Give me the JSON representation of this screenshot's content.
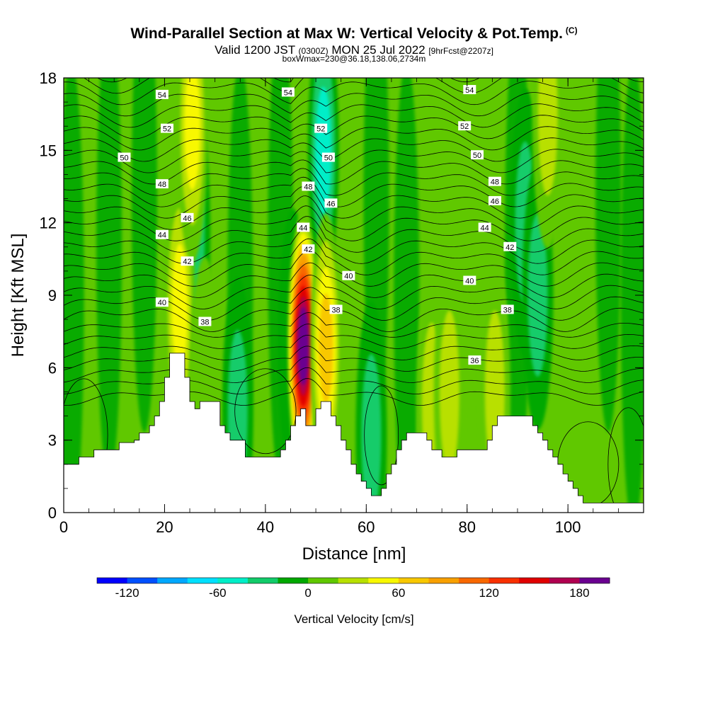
{
  "title": {
    "main": "Wind-Parallel Section at Max W: Vertical Velocity & Pot.Temp.",
    "copyright": "(C)",
    "valid_prefix": "Valid 1200 JST",
    "utc": "(0300Z)",
    "date": "MON 25 Jul 2022",
    "forecast": "[9hrFcst@2207z]",
    "box": "boxWmax=230@36.18,138.06,2734m"
  },
  "chart_data": {
    "type": "heatmap",
    "xlabel": "Distance [nm]",
    "ylabel": "Height [Kft MSL]",
    "xlim": [
      0,
      115
    ],
    "ylim": [
      0,
      18
    ],
    "x_ticks": [
      0,
      20,
      40,
      60,
      80,
      100
    ],
    "y_ticks": [
      0,
      3,
      6,
      9,
      12,
      15,
      18
    ],
    "terrain": {
      "x": [
        0,
        3,
        6,
        7,
        11,
        14,
        15,
        17,
        18,
        19,
        20,
        21,
        23,
        24,
        25,
        26,
        27,
        30,
        31,
        32,
        33,
        36,
        38,
        40,
        42,
        43,
        44,
        45,
        46,
        47,
        48,
        49,
        50,
        51,
        52,
        53,
        54,
        55,
        56,
        57,
        58,
        59,
        60,
        61,
        62,
        63,
        64,
        65,
        66,
        67,
        68,
        69,
        70,
        72,
        73,
        74,
        75,
        76,
        77,
        78,
        79,
        80,
        81,
        82,
        83,
        84,
        85,
        86,
        87,
        88,
        89,
        90,
        92,
        93,
        94,
        95,
        96,
        97,
        98,
        99,
        100,
        101,
        102,
        103,
        105,
        108,
        110,
        112,
        115
      ],
      "height": [
        2.0,
        2.3,
        2.6,
        2.6,
        2.9,
        3.0,
        3.3,
        3.6,
        4.0,
        4.6,
        5.6,
        6.6,
        6.6,
        5.6,
        4.6,
        4.3,
        4.6,
        4.6,
        3.6,
        3.3,
        3.0,
        2.3,
        2.3,
        2.3,
        2.3,
        2.6,
        3.0,
        3.6,
        4.0,
        4.3,
        3.6,
        3.6,
        4.3,
        4.6,
        4.6,
        4.0,
        3.6,
        3.0,
        2.6,
        2.0,
        1.6,
        1.3,
        1.0,
        0.7,
        0.7,
        1.0,
        1.6,
        2.0,
        2.6,
        3.0,
        3.3,
        3.3,
        3.3,
        3.0,
        2.6,
        2.6,
        2.3,
        2.3,
        2.3,
        2.6,
        2.6,
        2.6,
        2.6,
        2.6,
        2.6,
        3.0,
        3.6,
        4.0,
        4.0,
        4.0,
        4.0,
        4.0,
        4.0,
        3.6,
        3.3,
        3.0,
        2.6,
        2.3,
        2.0,
        1.6,
        1.3,
        1.0,
        0.7,
        0.4,
        0.4,
        0.4,
        0.4,
        0.4,
        0.4
      ]
    },
    "updraft_cells": [
      {
        "x": 47.5,
        "height_center": 6.9,
        "peak_w": 190
      },
      {
        "x": 52.0,
        "height_center": 6.8,
        "peak_w": 70
      },
      {
        "x": 23.0,
        "height_center": 8.5,
        "peak_w": 55
      },
      {
        "x": 25.5,
        "height_center": 16.0,
        "peak_w": 50
      },
      {
        "x": 96.0,
        "height_center": 16.5,
        "peak_w": 45
      },
      {
        "x": 73.0,
        "height_center": 4.5,
        "peak_w": 40
      },
      {
        "x": 85.5,
        "height_center": 5.0,
        "peak_w": 40
      },
      {
        "x": 76.5,
        "height_center": 5.0,
        "peak_w": 40
      },
      {
        "x": 28.0,
        "height_center": 5.0,
        "peak_w": 25
      }
    ],
    "downdraft_cells": [
      {
        "x": 51.5,
        "height_center": 15.0,
        "peak_w": -50
      },
      {
        "x": 26.0,
        "height_center": 11.5,
        "peak_w": -45
      },
      {
        "x": 34.5,
        "height_center": 4.2,
        "peak_w": -35
      },
      {
        "x": 61.0,
        "height_center": 3.2,
        "peak_w": -30
      },
      {
        "x": 91.5,
        "height_center": 12.0,
        "peak_w": -40
      },
      {
        "x": 94.0,
        "height_center": 9.0,
        "peak_w": -35
      },
      {
        "x": 45.5,
        "height_center": 7.0,
        "peak_w": -25
      }
    ],
    "isentrope_labels": [
      {
        "x": 19.5,
        "y": 17.3,
        "text": "54"
      },
      {
        "x": 44.5,
        "y": 17.4,
        "text": "54"
      },
      {
        "x": 80.5,
        "y": 17.5,
        "text": "54"
      },
      {
        "x": 20.5,
        "y": 15.9,
        "text": "52"
      },
      {
        "x": 51.0,
        "y": 15.9,
        "text": "52"
      },
      {
        "x": 79.5,
        "y": 16.0,
        "text": "52"
      },
      {
        "x": 12.0,
        "y": 14.7,
        "text": "50"
      },
      {
        "x": 52.5,
        "y": 14.7,
        "text": "50"
      },
      {
        "x": 82.0,
        "y": 14.8,
        "text": "50"
      },
      {
        "x": 19.5,
        "y": 13.6,
        "text": "48"
      },
      {
        "x": 48.5,
        "y": 13.5,
        "text": "48"
      },
      {
        "x": 85.5,
        "y": 13.7,
        "text": "48"
      },
      {
        "x": 24.5,
        "y": 12.2,
        "text": "46"
      },
      {
        "x": 53.0,
        "y": 12.8,
        "text": "46"
      },
      {
        "x": 85.5,
        "y": 12.9,
        "text": "46"
      },
      {
        "x": 19.5,
        "y": 11.5,
        "text": "44"
      },
      {
        "x": 47.5,
        "y": 11.8,
        "text": "44"
      },
      {
        "x": 83.5,
        "y": 11.8,
        "text": "44"
      },
      {
        "x": 24.5,
        "y": 10.4,
        "text": "42"
      },
      {
        "x": 48.5,
        "y": 10.9,
        "text": "42"
      },
      {
        "x": 88.5,
        "y": 11.0,
        "text": "42"
      },
      {
        "x": 19.5,
        "y": 8.7,
        "text": "40"
      },
      {
        "x": 56.5,
        "y": 9.8,
        "text": "40"
      },
      {
        "x": 80.5,
        "y": 9.6,
        "text": "40"
      },
      {
        "x": 28.0,
        "y": 7.9,
        "text": "38"
      },
      {
        "x": 54.0,
        "y": 8.4,
        "text": "38"
      },
      {
        "x": 88.0,
        "y": 8.4,
        "text": "38"
      },
      {
        "x": 81.5,
        "y": 6.3,
        "text": "36"
      }
    ],
    "colorbar": {
      "label": "Vertical Velocity [cm/s]",
      "tick_values": [
        -120,
        -60,
        0,
        60,
        120,
        180
      ],
      "bounds": [
        -140,
        -120,
        -100,
        -80,
        -60,
        -40,
        -20,
        0,
        20,
        40,
        60,
        80,
        100,
        120,
        140,
        160,
        180,
        200
      ],
      "colors": [
        "#0000ff",
        "#0050ff",
        "#00a8ff",
        "#00e0ff",
        "#00eec8",
        "#12cc6a",
        "#00a800",
        "#60c800",
        "#b8e000",
        "#f8f800",
        "#f8c800",
        "#f8a000",
        "#f86800",
        "#f83000",
        "#e00000",
        "#b00050",
        "#6a0090"
      ]
    }
  }
}
